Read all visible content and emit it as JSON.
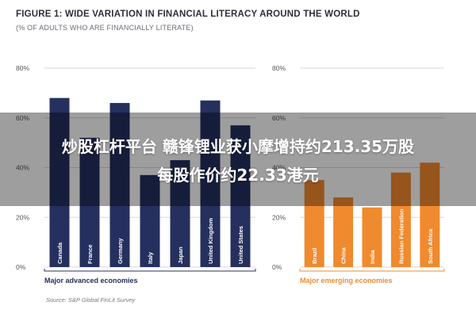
{
  "header": {
    "title": "FIGURE 1: WIDE VARIATION IN FINANCIAL LITERACY AROUND THE WORLD",
    "subtitle": "(% OF ADULTS WHO ARE FINANCIALLY LITERATE)"
  },
  "overlay": {
    "line1": "炒股杠杆平台 赣锋锂业获小摩增持约213.35万股",
    "line2": "每股作价约22.33港元"
  },
  "source": "Source: S&P Global FinLit Survey",
  "colors": {
    "advanced": "#25305e",
    "emerging": "#f08a2e",
    "axis_text": "#555555",
    "grid": "#d9d9d9"
  },
  "chart_data": [
    {
      "type": "bar",
      "title": "",
      "xlabel": "Major advanced economies",
      "ylabel": "",
      "ylim": [
        0,
        80
      ],
      "yticks": [
        "0%",
        "20%",
        "40%",
        "60%",
        "80%"
      ],
      "categories": [
        "Canada",
        "France",
        "Germany",
        "Italy",
        "Japan",
        "United Kingdom",
        "United States"
      ],
      "values": [
        68,
        52,
        66,
        37,
        43,
        67,
        57
      ]
    },
    {
      "type": "bar",
      "title": "",
      "xlabel": "Major emerging economies",
      "ylabel": "",
      "ylim": [
        0,
        80
      ],
      "yticks": [
        "0%",
        "20%",
        "40%",
        "60%",
        "80%"
      ],
      "categories": [
        "Brazil",
        "China",
        "India",
        "Russian Federation",
        "South Africa"
      ],
      "values": [
        35,
        28,
        24,
        38,
        42
      ]
    }
  ]
}
